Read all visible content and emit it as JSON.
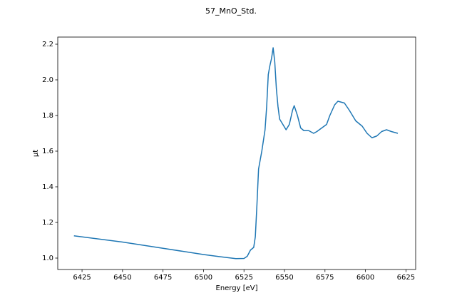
{
  "chart_data": {
    "type": "line",
    "title": "57_MnO_Std.",
    "x_label": "Energy [eV]",
    "y_label": "μt",
    "color": "#1f77b4",
    "x": [
      6420,
      6450,
      6475,
      6500,
      6510,
      6520,
      6525,
      6527,
      6529,
      6531,
      6532,
      6533,
      6534,
      6536,
      6538,
      6539,
      6540,
      6541,
      6542,
      6543,
      6544,
      6545,
      6546,
      6547,
      6549,
      6551,
      6553,
      6555,
      6556,
      6558,
      6560,
      6562,
      6565,
      6568,
      6570,
      6573,
      6576,
      6578,
      6581,
      6583,
      6587,
      6590,
      6594,
      6598,
      6601,
      6604,
      6607,
      6610,
      6613,
      6616,
      6620
    ],
    "values": [
      1.125,
      1.09,
      1.055,
      1.02,
      1.008,
      0.997,
      0.998,
      1.01,
      1.045,
      1.06,
      1.12,
      1.3,
      1.5,
      1.6,
      1.72,
      1.85,
      2.03,
      2.08,
      2.12,
      2.18,
      2.1,
      1.95,
      1.85,
      1.78,
      1.75,
      1.72,
      1.75,
      1.83,
      1.855,
      1.8,
      1.73,
      1.715,
      1.715,
      1.7,
      1.71,
      1.73,
      1.75,
      1.8,
      1.86,
      1.88,
      1.87,
      1.83,
      1.77,
      1.74,
      1.7,
      1.675,
      1.685,
      1.71,
      1.72,
      1.71,
      1.7
    ],
    "xlim": [
      6410,
      6631
    ],
    "ylim": [
      0.936,
      2.24
    ],
    "xticks": [
      6425,
      6450,
      6475,
      6500,
      6525,
      6550,
      6575,
      6600,
      6625
    ],
    "yticks": [
      {
        "value": 1.0,
        "label": "1.0"
      },
      1.2,
      1.4,
      1.6,
      1.8,
      {
        "value": 2.0,
        "label": "2.0"
      },
      2.2
    ]
  }
}
